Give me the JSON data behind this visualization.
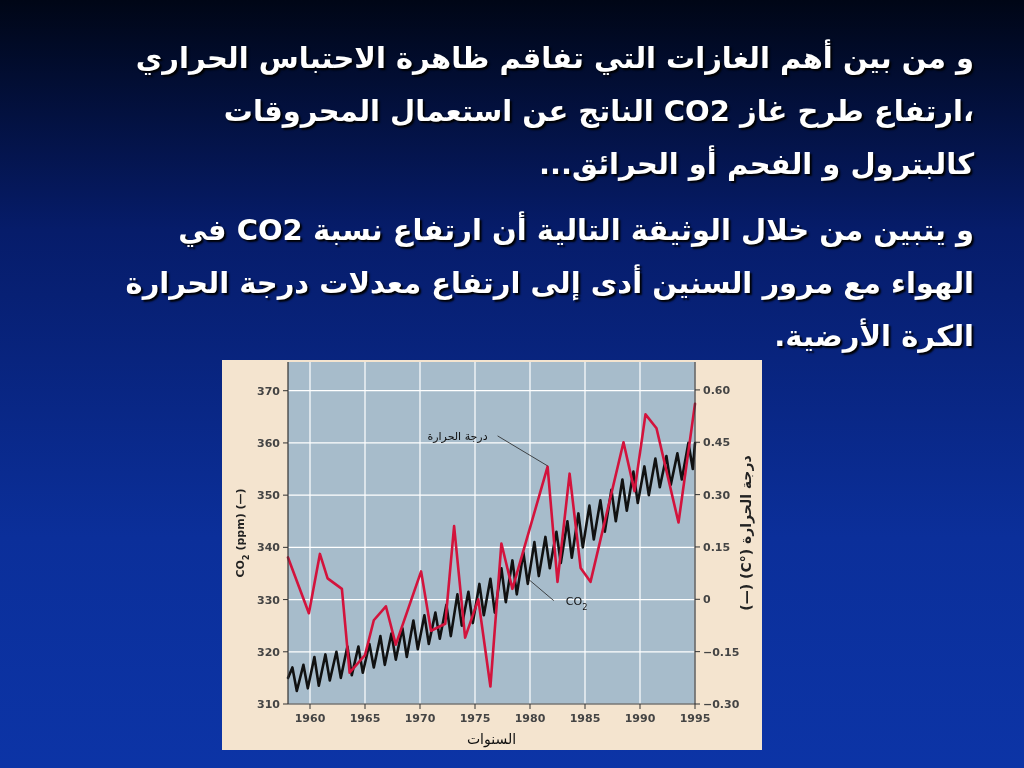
{
  "chart_data": {
    "type": "line",
    "title": "و من بين أهم الغازات التي تفاقم ظاهرة الاحتباس الحراري ،ارتفاع طرح غاز CO2 الناتج عن استعمال المحروقات كالبترول و الفحم أو الحرائق...",
    "subtitle": "و يتبين من خلال الوثيقة التالية أن ارتفاع نسبة CO2 في الهواء مع مرور السنين أدى إلى ارتفاع معدلات درجة الحرارة الكرة الأرضية.",
    "xlabel": "السنوات",
    "ylabel": "CO$_{2}$ (ppm) (—)",
    "y2label": "درجة الحرارة (°C) (—)",
    "xlim": [
      1958,
      1995
    ],
    "xticks": [
      1960,
      1965,
      1970,
      1975,
      1980,
      1985,
      1990,
      1995
    ],
    "ylim": [
      310,
      375.5
    ],
    "yticks": [
      310,
      320,
      330,
      340,
      350,
      360,
      370
    ],
    "y2lim": [
      -0.3,
      0.68
    ],
    "y2ticks": [
      {
        "value": 0.6,
        "label": "0.60"
      },
      {
        "value": 0.45,
        "label": "0.45"
      },
      {
        "value": 0.3,
        "label": "0.30"
      },
      {
        "value": 0.15,
        "label": "0.15"
      },
      0,
      {
        "value": -0.15,
        "label": "−0.15"
      },
      {
        "value": -0.3,
        "label": "−0.30"
      }
    ],
    "grid": true,
    "annotations": [
      {
        "text": "درجة الحرارة",
        "x": 1981.6,
        "y": 355.6
      },
      {
        "text": "CO$_{2}$",
        "x": 1979.8,
        "y": 334
      }
    ],
    "series": [
      {
        "color": "#111111",
        "x": [
          1958.0,
          1958.4,
          1958.8,
          1959.4,
          1959.8,
          1960.4,
          1960.8,
          1961.4,
          1961.8,
          1962.4,
          1962.8,
          1963.4,
          1963.8,
          1964.4,
          1964.8,
          1965.4,
          1965.8,
          1966.4,
          1966.8,
          1967.4,
          1967.8,
          1968.4,
          1968.8,
          1969.4,
          1969.8,
          1970.4,
          1970.8,
          1971.4,
          1971.8,
          1972.4,
          1972.8,
          1973.4,
          1973.8,
          1974.4,
          1974.8,
          1975.4,
          1975.8,
          1976.4,
          1976.8,
          1977.4,
          1977.8,
          1978.4,
          1978.8,
          1979.4,
          1979.8,
          1980.4,
          1980.8,
          1981.4,
          1981.8,
          1982.4,
          1982.8,
          1983.4,
          1983.8,
          1984.4,
          1984.8,
          1985.4,
          1985.8,
          1986.4,
          1986.8,
          1987.4,
          1987.8,
          1988.4,
          1988.8,
          1989.4,
          1989.8,
          1990.4,
          1990.8,
          1991.4,
          1991.8,
          1992.4,
          1992.8,
          1993.4,
          1993.8,
          1994.4,
          1994.8,
          1995.0
        ],
        "values": [
          315,
          317,
          312.5,
          317.5,
          313,
          319,
          313.5,
          319.5,
          314.5,
          320,
          315,
          321,
          315.5,
          321,
          316,
          321.5,
          317,
          323,
          317.5,
          323.5,
          318.5,
          324.5,
          319,
          326,
          320.5,
          327,
          321.5,
          327.5,
          322.5,
          329,
          323,
          331,
          325,
          331.5,
          325.5,
          333,
          327,
          334,
          327.5,
          336,
          329.5,
          337.5,
          331,
          339,
          333,
          341,
          334.5,
          342,
          336,
          343,
          337,
          345,
          338,
          346.5,
          340,
          348,
          341.5,
          349,
          343,
          351,
          345,
          353,
          347,
          354.5,
          348.5,
          355.5,
          350,
          357,
          351.5,
          357.5,
          352,
          358,
          353,
          360,
          355,
          360
        ]
      },
      {
        "color": "#d3133c",
        "axis": "y2",
        "x": [
          1958.0,
          1959.9,
          1960.9,
          1961.6,
          1962.9,
          1963.6,
          1965.0,
          1965.8,
          1966.9,
          1967.8,
          1970.1,
          1971.0,
          1972.3,
          1973.1,
          1974.1,
          1975.3,
          1976.4,
          1977.4,
          1978.4,
          1981.6,
          1982.5,
          1983.6,
          1984.6,
          1985.5,
          1988.5,
          1989.5,
          1990.5,
          1991.5,
          1993.5,
          1995.0
        ],
        "values": [
          0.12,
          -0.04,
          0.13,
          0.06,
          0.03,
          -0.21,
          -0.16,
          -0.06,
          -0.02,
          -0.13,
          0.08,
          -0.09,
          -0.07,
          0.21,
          -0.11,
          0.0,
          -0.25,
          0.16,
          0.03,
          0.38,
          0.05,
          0.36,
          0.09,
          0.05,
          0.45,
          0.31,
          0.53,
          0.49,
          0.22,
          0.56
        ]
      }
    ]
  }
}
